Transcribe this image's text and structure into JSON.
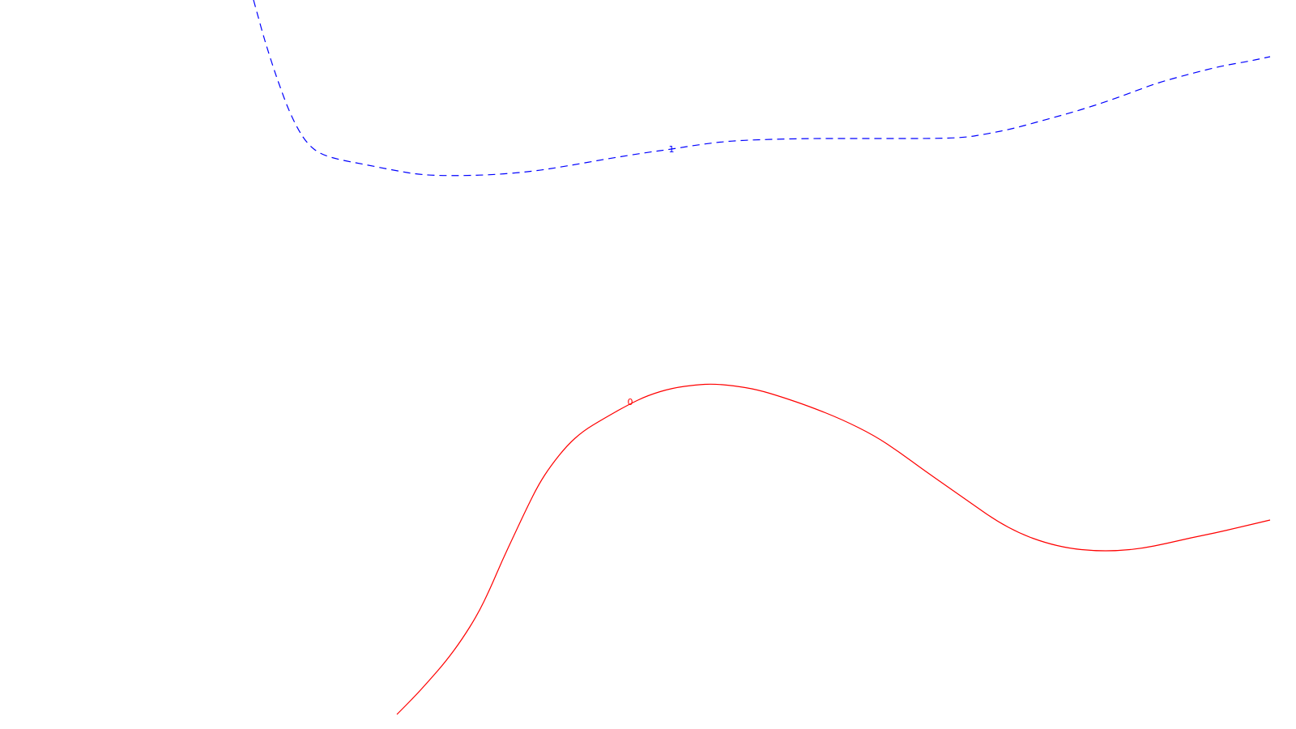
{
  "chart_data": {
    "type": "line",
    "title": "",
    "xlabel": "",
    "ylabel": "",
    "grid": false,
    "series": [
      {
        "level_label": "1",
        "color": "#0000ff",
        "style": "dashed",
        "points": [
          [
            313,
            0
          ],
          [
            318,
            18
          ],
          [
            324,
            40
          ],
          [
            330,
            60
          ],
          [
            338,
            85
          ],
          [
            346,
            108
          ],
          [
            356,
            135
          ],
          [
            368,
            160
          ],
          [
            380,
            178
          ],
          [
            395,
            190
          ],
          [
            418,
            197
          ],
          [
            450,
            203
          ],
          [
            485,
            210
          ],
          [
            520,
            216
          ],
          [
            560,
            217
          ],
          [
            605,
            216
          ],
          [
            655,
            212
          ],
          [
            700,
            205
          ],
          [
            750,
            196
          ],
          [
            800,
            188
          ],
          [
            830,
            184
          ],
          [
            860,
            179
          ],
          [
            900,
            174
          ],
          [
            950,
            172
          ],
          [
            1000,
            171
          ],
          [
            1050,
            171
          ],
          [
            1100,
            171
          ],
          [
            1150,
            171
          ],
          [
            1190,
            170
          ],
          [
            1220,
            165
          ],
          [
            1250,
            159
          ],
          [
            1290,
            148
          ],
          [
            1330,
            137
          ],
          [
            1370,
            124
          ],
          [
            1400,
            113
          ],
          [
            1430,
            102
          ],
          [
            1470,
            91
          ],
          [
            1510,
            81
          ],
          [
            1540,
            76
          ],
          [
            1568,
            70
          ]
        ]
      },
      {
        "level_label": "0",
        "color": "#ff0000",
        "style": "solid",
        "points": [
          [
            490,
            882
          ],
          [
            510,
            862
          ],
          [
            530,
            840
          ],
          [
            550,
            817
          ],
          [
            570,
            790
          ],
          [
            590,
            758
          ],
          [
            605,
            727
          ],
          [
            620,
            692
          ],
          [
            635,
            660
          ],
          [
            650,
            628
          ],
          [
            665,
            598
          ],
          [
            680,
            575
          ],
          [
            700,
            550
          ],
          [
            720,
            532
          ],
          [
            745,
            517
          ],
          [
            775,
            500
          ],
          [
            800,
            488
          ],
          [
            830,
            479
          ],
          [
            860,
            475
          ],
          [
            880,
            474
          ],
          [
            905,
            476
          ],
          [
            935,
            481
          ],
          [
            965,
            490
          ],
          [
            1000,
            502
          ],
          [
            1040,
            518
          ],
          [
            1080,
            538
          ],
          [
            1110,
            558
          ],
          [
            1140,
            580
          ],
          [
            1170,
            601
          ],
          [
            1200,
            622
          ],
          [
            1230,
            643
          ],
          [
            1260,
            659
          ],
          [
            1290,
            670
          ],
          [
            1320,
            677
          ],
          [
            1350,
            680
          ],
          [
            1380,
            680
          ],
          [
            1410,
            677
          ],
          [
            1440,
            671
          ],
          [
            1470,
            664
          ],
          [
            1500,
            658
          ],
          [
            1530,
            651
          ],
          [
            1568,
            642
          ]
        ]
      }
    ]
  },
  "labels": {
    "contour_1": "1",
    "contour_0": "0"
  },
  "colors": {
    "background": "#ffffff",
    "contour_1": "#0000ff",
    "contour_0": "#ff0000"
  }
}
